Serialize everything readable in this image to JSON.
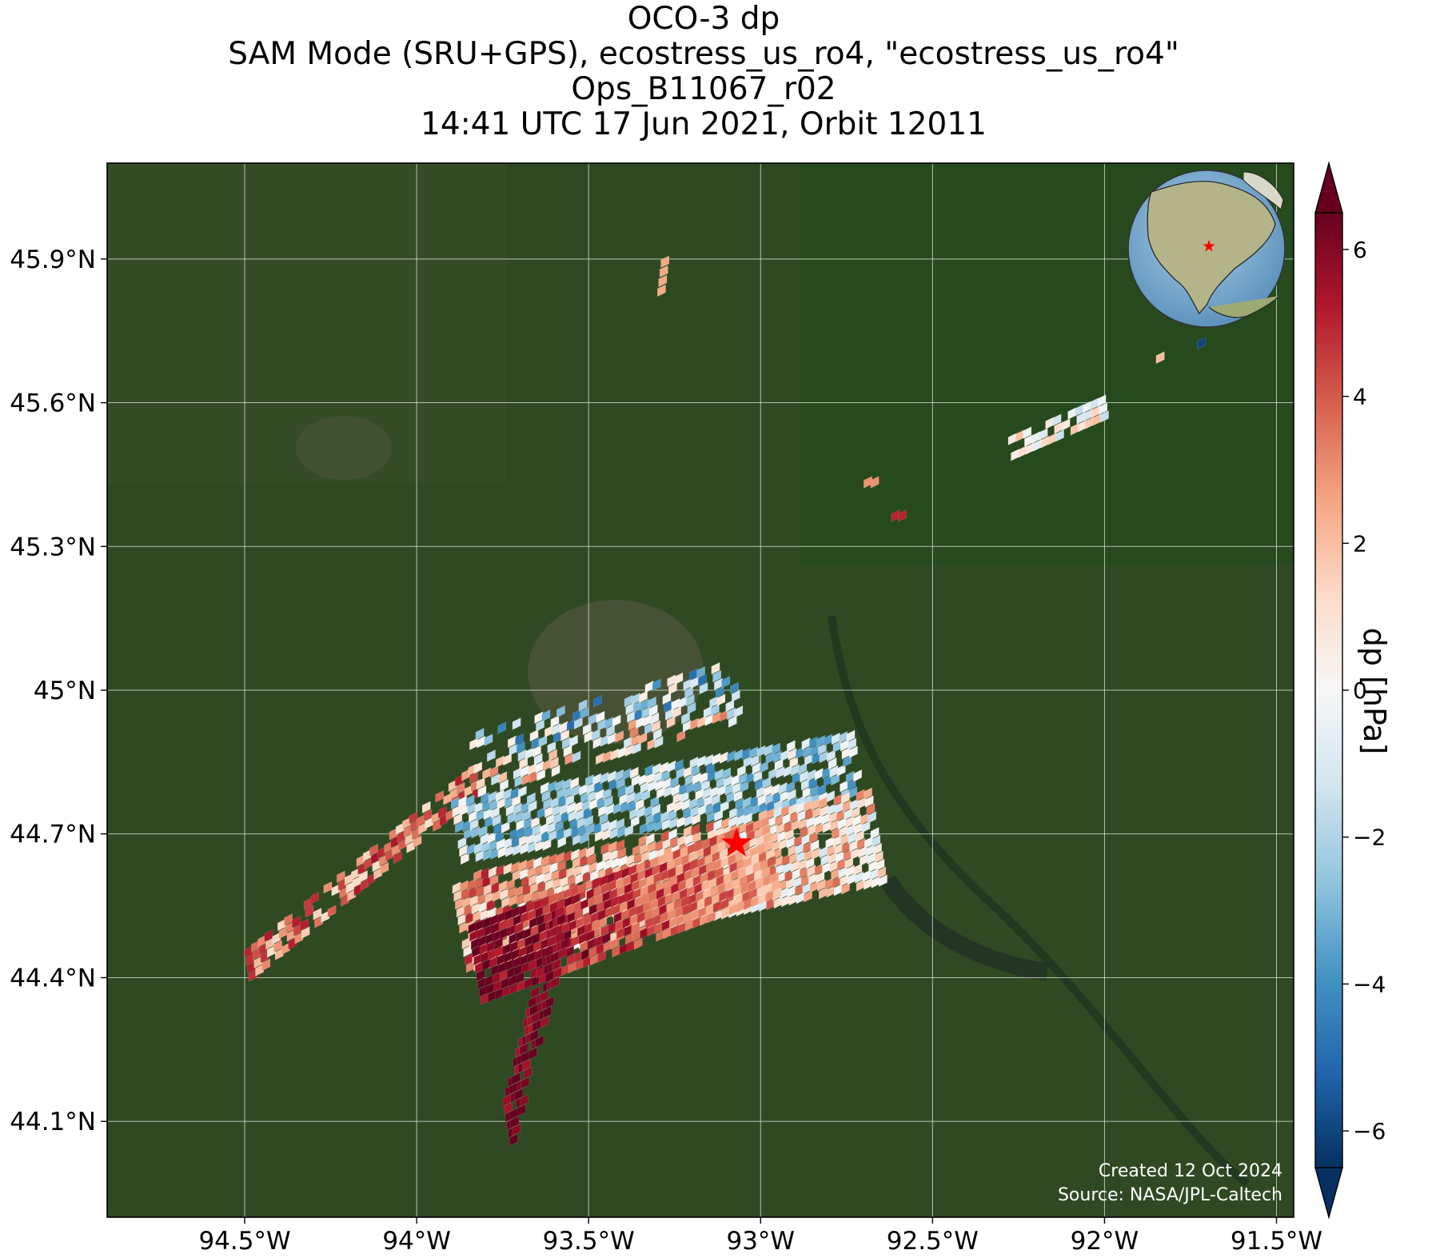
{
  "title": {
    "line1": "OCO-3 dp",
    "line2": "SAM Mode (SRU+GPS), ecostress_us_ro4, \"ecostress_us_ro4\"",
    "line3": "Ops_B11067_r02",
    "line4": "14:41 UTC 17 Jun 2021, Orbit 12011"
  },
  "map": {
    "lon_range": [
      -94.9,
      -91.45
    ],
    "lat_range": [
      43.9,
      46.1
    ],
    "lon_ticks": [
      {
        "value": -94.5,
        "label": "94.5°W"
      },
      {
        "value": -94.0,
        "label": "94°W"
      },
      {
        "value": -93.5,
        "label": "93.5°W"
      },
      {
        "value": -93.0,
        "label": "93°W"
      },
      {
        "value": -92.5,
        "label": "92.5°W"
      },
      {
        "value": -92.0,
        "label": "92°W"
      },
      {
        "value": -91.5,
        "label": "91.5°W"
      }
    ],
    "lat_ticks": [
      {
        "value": 45.9,
        "label": "45.9°N"
      },
      {
        "value": 45.6,
        "label": "45.6°N"
      },
      {
        "value": 45.3,
        "label": "45.3°N"
      },
      {
        "value": 45.0,
        "label": "45°N"
      },
      {
        "value": 44.7,
        "label": "44.7°N"
      },
      {
        "value": 44.4,
        "label": "44.4°N"
      },
      {
        "value": 44.1,
        "label": "44.1°N"
      }
    ],
    "gridlines": true,
    "target": {
      "lon": -93.07,
      "lat": 44.68,
      "marker": "red-star"
    },
    "inset_globe": {
      "placement": "top-right",
      "marker": "red-star",
      "region": "North America"
    },
    "background": "satellite imagery",
    "colors": {
      "target": "#ff0000",
      "grid": "#ffffff"
    }
  },
  "colorbar": {
    "label": "dp [hPa]",
    "range": [
      -6.5,
      6.5
    ],
    "ticks": [
      {
        "value": 6,
        "label": "6"
      },
      {
        "value": 4,
        "label": "4"
      },
      {
        "value": 2,
        "label": "2"
      },
      {
        "value": 0,
        "label": "0"
      },
      {
        "value": -2,
        "label": "−2"
      },
      {
        "value": -4,
        "label": "−4"
      },
      {
        "value": -6,
        "label": "−6"
      }
    ],
    "colormap": "RdBu_r",
    "extend": "both"
  },
  "credits": {
    "created": "Created 12 Oct 2024",
    "source": "Source: NASA/JPL-Caltech"
  }
}
